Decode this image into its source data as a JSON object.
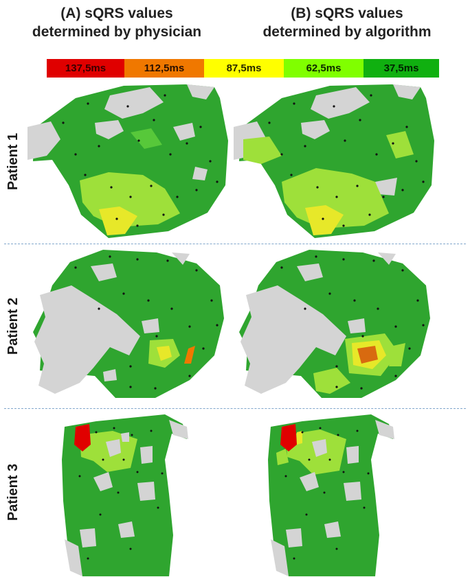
{
  "columns": [
    {
      "line1": "(A) sQRS values",
      "line2": "determined by physician"
    },
    {
      "line1": "(B) sQRS values",
      "line2": "determined by algorithm"
    }
  ],
  "legend": [
    {
      "label": "137,5ms",
      "color": "#e00000",
      "text_color": "#3a0000"
    },
    {
      "label": "112,5ms",
      "color": "#f07800",
      "text_color": "#2a1000"
    },
    {
      "label": "87,5ms",
      "color": "#ffff00",
      "text_color": "#2a2a00"
    },
    {
      "label": "62,5ms",
      "color": "#80ff00",
      "text_color": "#0d2a00"
    },
    {
      "label": "37,5ms",
      "color": "#10b010",
      "text_color": "#002200"
    }
  ],
  "rows": [
    {
      "label": "Patient 1"
    },
    {
      "label": "Patient 2"
    },
    {
      "label": "Patient 3"
    }
  ],
  "colors": {
    "tissue_green": "#2fa52f",
    "tissue_light": "#7dd84a",
    "scar_gray": "#d4d4d4",
    "point": "#111111",
    "separator": "#7fa6cc"
  }
}
